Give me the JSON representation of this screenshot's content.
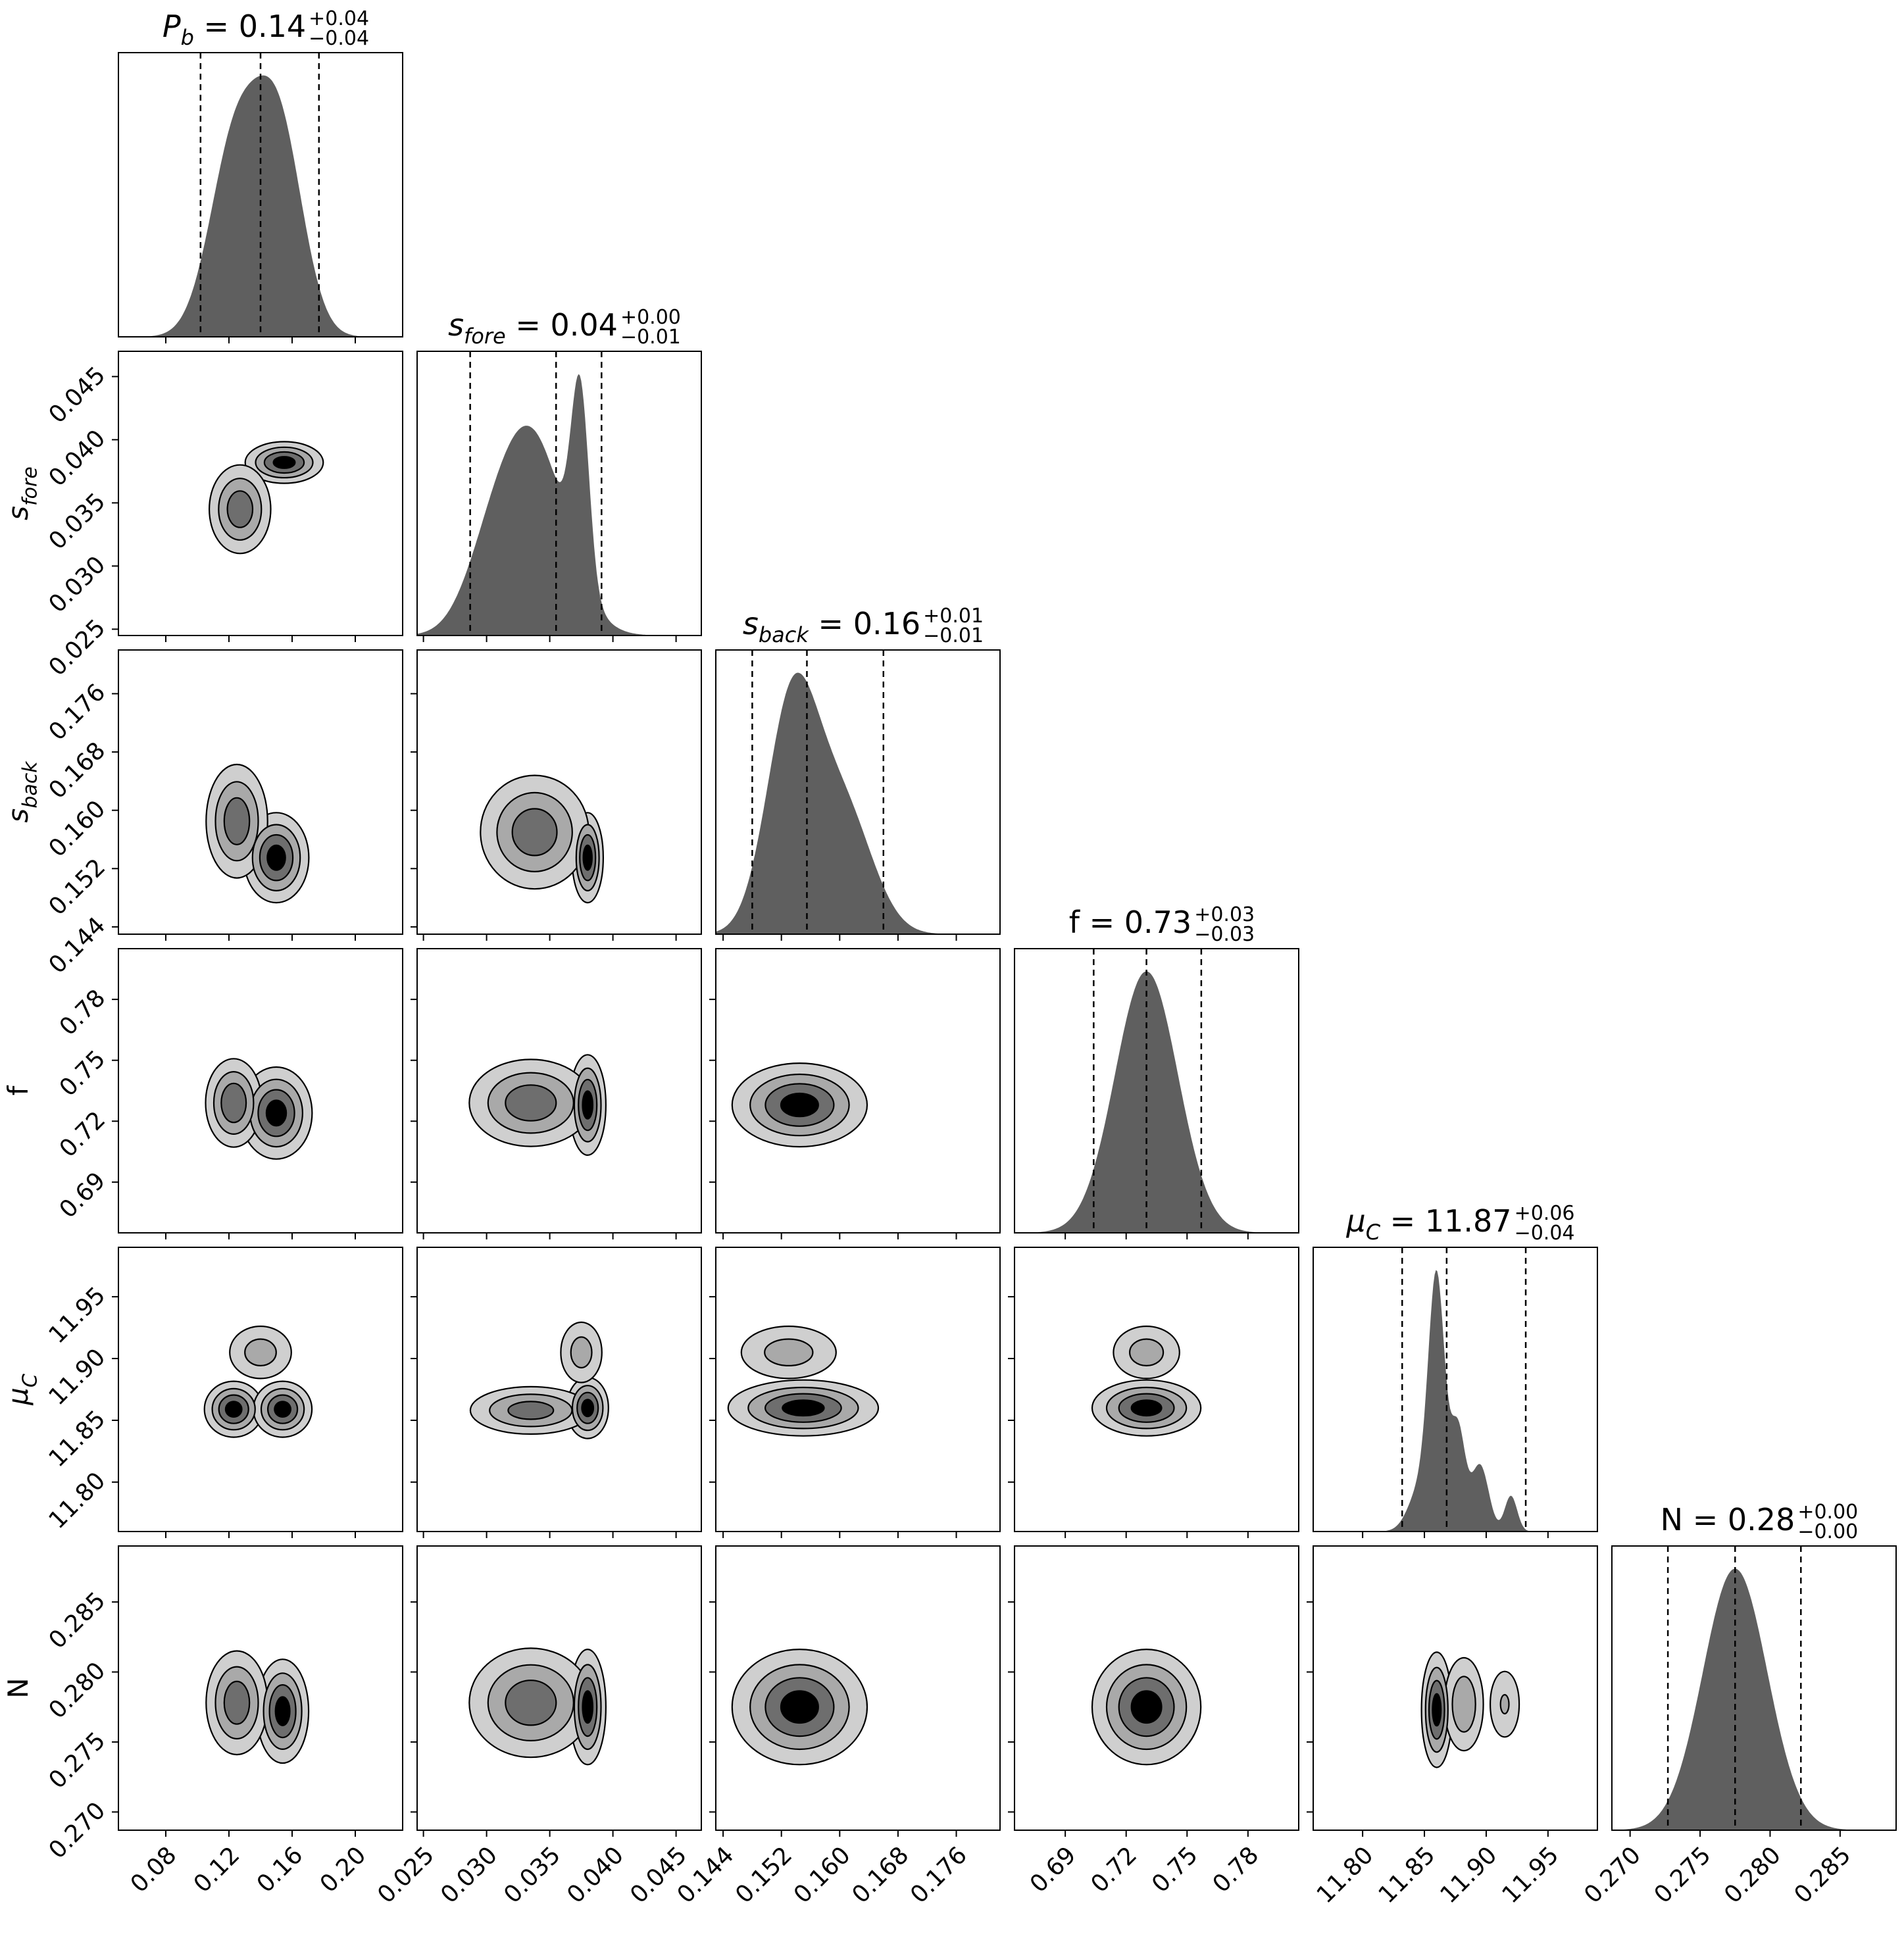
{
  "chart_data": {
    "type": "corner",
    "parameters": [
      {
        "key": "Pb",
        "base": "P",
        "sub": "b",
        "title": {
          "median": "0.14",
          "plus": "+0.04",
          "minus": "−0.04"
        },
        "range": [
          0.05,
          0.23
        ],
        "ticks": [
          0.08,
          0.12,
          0.16,
          0.2
        ],
        "tick_labels": [
          "0.08",
          "0.12",
          "0.16",
          "0.20"
        ],
        "median": 0.14,
        "quantiles": [
          0.102,
          0.14,
          0.177
        ],
        "hist_peaks": [
          {
            "mu": 0.124,
            "sigma": 0.016,
            "amp": 0.93
          },
          {
            "mu": 0.152,
            "sigma": 0.015,
            "amp": 0.96
          }
        ]
      },
      {
        "key": "sfore",
        "base": "s",
        "sub": "fore",
        "title": {
          "median": "0.04",
          "plus": "+0.00",
          "minus": "−0.01"
        },
        "range": [
          0.0245,
          0.047
        ],
        "ticks": [
          0.025,
          0.03,
          0.035,
          0.04,
          0.045
        ],
        "tick_labels": [
          "0.025",
          "0.030",
          "0.035",
          "0.040",
          "0.045"
        ],
        "median": 0.0355,
        "quantiles": [
          0.0287,
          0.0355,
          0.0391
        ],
        "hist_peaks": [
          {
            "mu": 0.0335,
            "sigma": 0.0027,
            "amp": 0.58
          },
          {
            "mu": 0.0374,
            "sigma": 0.0007,
            "amp": 0.55
          },
          {
            "mu": 0.03,
            "sigma": 0.002,
            "amp": 0.12
          }
        ]
      },
      {
        "key": "sback",
        "base": "s",
        "sub": "back",
        "title": {
          "median": "0.16",
          "plus": "+0.01",
          "minus": "−0.01"
        },
        "range": [
          0.143,
          0.182
        ],
        "ticks": [
          0.144,
          0.152,
          0.16,
          0.168,
          0.176
        ],
        "tick_labels": [
          "0.144",
          "0.152",
          "0.160",
          "0.168",
          "0.176"
        ],
        "median": 0.1555,
        "quantiles": [
          0.148,
          0.1555,
          0.166
        ],
        "hist_peaks": [
          {
            "mu": 0.1535,
            "sigma": 0.0035,
            "amp": 0.9
          },
          {
            "mu": 0.1605,
            "sigma": 0.004,
            "amp": 0.48
          }
        ]
      },
      {
        "key": "f",
        "base": "f",
        "sub": "",
        "title": {
          "median": "0.73",
          "plus": "+0.03",
          "minus": "−0.03"
        },
        "range": [
          0.665,
          0.805
        ],
        "ticks": [
          0.69,
          0.72,
          0.75,
          0.78
        ],
        "tick_labels": [
          "0.69",
          "0.72",
          "0.75",
          "0.78"
        ],
        "median": 0.73,
        "quantiles": [
          0.704,
          0.73,
          0.757
        ],
        "hist_peaks": [
          {
            "mu": 0.73,
            "sigma": 0.0155,
            "amp": 1.0
          }
        ]
      },
      {
        "key": "muC",
        "base": "μ",
        "sub": "C",
        "title": {
          "median": "11.87",
          "plus": "+0.06",
          "minus": "−0.04"
        },
        "range": [
          11.76,
          11.99
        ],
        "ticks": [
          11.8,
          11.85,
          11.9,
          11.95
        ],
        "tick_labels": [
          "11.80",
          "11.85",
          "11.90",
          "11.95"
        ],
        "median": 11.868,
        "quantiles": [
          11.832,
          11.868,
          11.932
        ],
        "hist_peaks": [
          {
            "mu": 11.86,
            "sigma": 0.0065,
            "amp": 0.93
          },
          {
            "mu": 11.877,
            "sigma": 0.006,
            "amp": 0.4
          },
          {
            "mu": 11.895,
            "sigma": 0.007,
            "amp": 0.26
          },
          {
            "mu": 11.92,
            "sigma": 0.005,
            "amp": 0.14
          },
          {
            "mu": 11.848,
            "sigma": 0.01,
            "amp": 0.18
          }
        ]
      },
      {
        "key": "N",
        "base": "N",
        "sub": "",
        "title": {
          "median": "0.28",
          "plus": "+0.00",
          "minus": "−0.00"
        },
        "range": [
          0.2687,
          0.289
        ],
        "ticks": [
          0.27,
          0.275,
          0.28,
          0.285
        ],
        "tick_labels": [
          "0.270",
          "0.275",
          "0.280",
          "0.285"
        ],
        "median": 0.2775,
        "quantiles": [
          0.2727,
          0.2775,
          0.2822
        ],
        "hist_peaks": [
          {
            "mu": 0.2775,
            "sigma": 0.0023,
            "amp": 1.0
          }
        ]
      }
    ],
    "contour_levels": [
      "0.5σ",
      "1σ",
      "1.5σ",
      "2σ"
    ],
    "contour_fills": [
      "#cfcfcf",
      "#a9a9a9",
      "#6e6e6e",
      "#000000"
    ],
    "pair_blobs": {
      "1-0": [
        {
          "mx": 0.155,
          "my": 0.0382,
          "sx": 0.012,
          "sy": 0.0008,
          "w": 1.0
        },
        {
          "mx": 0.127,
          "my": 0.0345,
          "sx": 0.01,
          "sy": 0.0018,
          "w": 0.8
        }
      ],
      "2-0": [
        {
          "mx": 0.15,
          "my": 0.1535,
          "sx": 0.01,
          "sy": 0.003,
          "w": 1.0
        },
        {
          "mx": 0.125,
          "my": 0.1585,
          "sx": 0.01,
          "sy": 0.004,
          "w": 0.8
        }
      ],
      "2-1": [
        {
          "mx": 0.038,
          "my": 0.1535,
          "sx": 0.0006,
          "sy": 0.003,
          "w": 1.0
        },
        {
          "mx": 0.0338,
          "my": 0.157,
          "sx": 0.0022,
          "sy": 0.004,
          "w": 0.8
        }
      ],
      "3-0": [
        {
          "mx": 0.15,
          "my": 0.724,
          "sx": 0.011,
          "sy": 0.011,
          "w": 1.0
        },
        {
          "mx": 0.123,
          "my": 0.729,
          "sx": 0.009,
          "sy": 0.011,
          "w": 0.85
        }
      ],
      "3-1": [
        {
          "mx": 0.038,
          "my": 0.728,
          "sx": 0.0007,
          "sy": 0.012,
          "w": 1.0
        },
        {
          "mx": 0.0335,
          "my": 0.729,
          "sx": 0.0025,
          "sy": 0.011,
          "w": 0.8
        }
      ],
      "3-2": [
        {
          "mx": 0.1545,
          "my": 0.728,
          "sx": 0.0045,
          "sy": 0.01,
          "w": 1.0
        }
      ],
      "4-0": [
        {
          "mx": 0.123,
          "my": 11.859,
          "sx": 0.009,
          "sy": 0.011,
          "w": 1.0
        },
        {
          "mx": 0.154,
          "my": 11.859,
          "sx": 0.009,
          "sy": 0.011,
          "w": 1.0
        },
        {
          "mx": 0.14,
          "my": 11.905,
          "sx": 0.012,
          "sy": 0.013,
          "w": 0.45
        }
      ],
      "4-1": [
        {
          "mx": 0.038,
          "my": 11.86,
          "sx": 0.0008,
          "sy": 0.012,
          "w": 1.0
        },
        {
          "mx": 0.0335,
          "my": 11.858,
          "sx": 0.0025,
          "sy": 0.01,
          "w": 0.75
        },
        {
          "mx": 0.0375,
          "my": 11.905,
          "sx": 0.001,
          "sy": 0.015,
          "w": 0.45
        }
      ],
      "4-2": [
        {
          "mx": 0.155,
          "my": 11.86,
          "sx": 0.005,
          "sy": 0.011,
          "w": 1.0
        },
        {
          "mx": 0.153,
          "my": 11.905,
          "sx": 0.004,
          "sy": 0.013,
          "w": 0.45
        }
      ],
      "4-3": [
        {
          "mx": 0.73,
          "my": 11.86,
          "sx": 0.013,
          "sy": 0.011,
          "w": 1.0
        },
        {
          "mx": 0.73,
          "my": 11.905,
          "sx": 0.01,
          "sy": 0.013,
          "w": 0.45
        }
      ],
      "5-0": [
        {
          "mx": 0.154,
          "my": 0.2772,
          "sx": 0.008,
          "sy": 0.0018,
          "w": 1.0
        },
        {
          "mx": 0.125,
          "my": 0.2778,
          "sx": 0.01,
          "sy": 0.0019,
          "w": 0.8
        }
      ],
      "5-1": [
        {
          "mx": 0.038,
          "my": 0.2775,
          "sx": 0.0007,
          "sy": 0.002,
          "w": 1.0
        },
        {
          "mx": 0.0335,
          "my": 0.2778,
          "sx": 0.0025,
          "sy": 0.002,
          "w": 0.8
        }
      ],
      "5-2": [
        {
          "mx": 0.1545,
          "my": 0.2775,
          "sx": 0.0045,
          "sy": 0.002,
          "w": 1.0
        }
      ],
      "5-3": [
        {
          "mx": 0.73,
          "my": 0.2775,
          "sx": 0.013,
          "sy": 0.002,
          "w": 1.0
        }
      ],
      "5-4": [
        {
          "mx": 11.86,
          "my": 0.2773,
          "sx": 0.006,
          "sy": 0.002,
          "w": 1.0
        },
        {
          "mx": 11.882,
          "my": 0.2777,
          "sx": 0.009,
          "sy": 0.0019,
          "w": 0.55
        },
        {
          "mx": 11.915,
          "my": 0.2777,
          "sx": 0.008,
          "sy": 0.0016,
          "w": 0.35
        }
      ]
    }
  }
}
